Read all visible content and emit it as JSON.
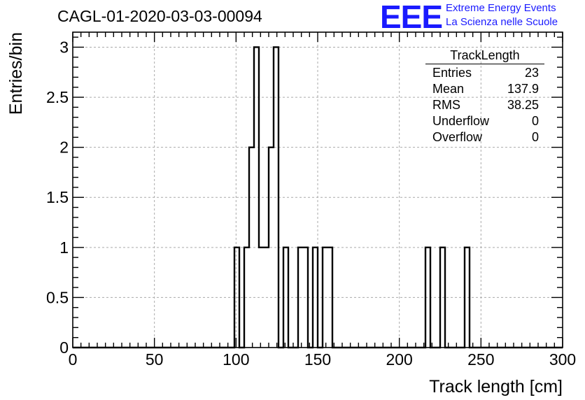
{
  "header": {
    "run_title": "CAGL-01-2020-03-03-00094",
    "logo": "EEE",
    "logo_line1": "Extreme Energy Events",
    "logo_line2": "La Scienza nelle Scuole"
  },
  "colors": {
    "accent": "#1a1aff",
    "line": "#000000",
    "grid": "#aaaaaa"
  },
  "stats_box": {
    "title": "TrackLength",
    "rows": [
      {
        "label": "Entries",
        "value": "23"
      },
      {
        "label": "Mean",
        "value": "137.9"
      },
      {
        "label": "RMS",
        "value": "38.25"
      },
      {
        "label": "Underflow",
        "value": "0"
      },
      {
        "label": "Overflow",
        "value": "0"
      }
    ]
  },
  "chart_data": {
    "type": "bar",
    "histogram": true,
    "xlabel": "Track length [cm]",
    "ylabel": "Entries/bin",
    "xlim": [
      0,
      300
    ],
    "ylim": [
      0,
      3.15
    ],
    "x_ticks": [
      0,
      50,
      100,
      150,
      200,
      250,
      300
    ],
    "x_tick_labels": [
      "0",
      "50",
      "100",
      "150",
      "200",
      "250",
      "300"
    ],
    "y_ticks": [
      0,
      0.5,
      1,
      1.5,
      2,
      2.5,
      3
    ],
    "y_tick_labels": [
      "0",
      "0.5",
      "1",
      "1.5",
      "2",
      "2.5",
      "3"
    ],
    "grid": true,
    "bin_width": 3,
    "bin_edges_start": 0,
    "bins": [
      {
        "x": 99,
        "count": 1
      },
      {
        "x": 105,
        "count": 1
      },
      {
        "x": 108,
        "count": 2
      },
      {
        "x": 111,
        "count": 3
      },
      {
        "x": 114,
        "count": 1
      },
      {
        "x": 117,
        "count": 1
      },
      {
        "x": 120,
        "count": 2
      },
      {
        "x": 123,
        "count": 3
      },
      {
        "x": 129,
        "count": 1
      },
      {
        "x": 138,
        "count": 1
      },
      {
        "x": 141,
        "count": 1
      },
      {
        "x": 147,
        "count": 1
      },
      {
        "x": 153,
        "count": 1
      },
      {
        "x": 156,
        "count": 1
      },
      {
        "x": 216,
        "count": 1
      },
      {
        "x": 225,
        "count": 1
      },
      {
        "x": 240,
        "count": 1
      }
    ]
  }
}
